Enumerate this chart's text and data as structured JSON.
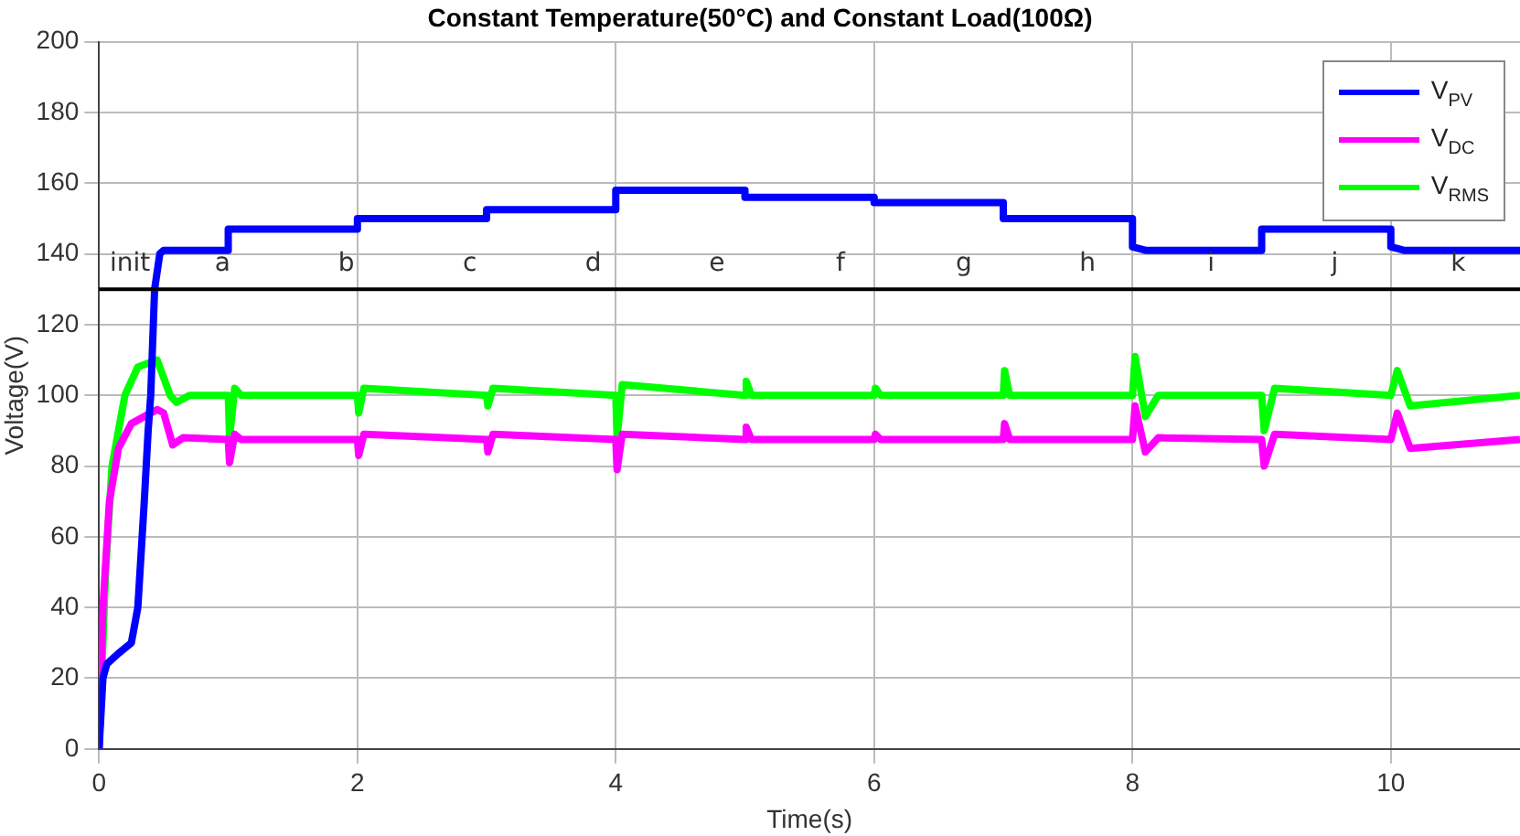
{
  "chart_data": {
    "type": "line",
    "title": "Constant Temperature(50°C) and Constant Load(100Ω)",
    "xlabel": "Time(s)",
    "ylabel": "Voltage(V)",
    "xlim": [
      0,
      11
    ],
    "xticks": [
      0,
      2,
      4,
      6,
      8,
      10
    ],
    "ylim": [
      0,
      200
    ],
    "yticks": [
      0,
      20,
      40,
      60,
      80,
      100,
      120,
      140,
      160,
      180,
      200
    ],
    "grid": true,
    "legend": "top right",
    "marker": "none",
    "line_style": "solid",
    "series": [
      {
        "name": "V$_{PV}$",
        "color": "#0000ff",
        "x": [
          0,
          0.03,
          0.06,
          0.15,
          0.25,
          0.3,
          0.35,
          0.38,
          0.4,
          0.43,
          0.47,
          0.5,
          0.55,
          1,
          1,
          2,
          2,
          3,
          3,
          4,
          4,
          5,
          5,
          6,
          6,
          7,
          7,
          8,
          8,
          8.1,
          9,
          9,
          10,
          10,
          10.1,
          11
        ],
        "values": [
          0,
          20,
          24,
          27,
          30,
          40,
          70,
          90,
          100,
          130,
          140,
          141,
          141,
          141,
          147,
          147,
          150,
          150,
          152.5,
          152.5,
          158,
          158,
          156,
          156,
          154.5,
          154.5,
          150,
          150,
          142,
          141,
          141,
          147,
          147,
          142,
          141,
          141
        ]
      },
      {
        "name": "V$_{DC}$",
        "color": "#ff00ff",
        "x": [
          0,
          0.03,
          0.08,
          0.15,
          0.25,
          0.4,
          0.45,
          0.5,
          0.57,
          0.65,
          1,
          1.01,
          1.05,
          1.1,
          2,
          2.01,
          2.05,
          3,
          3.01,
          3.05,
          4,
          4.01,
          4.05,
          5,
          5.01,
          5.05,
          6,
          6.01,
          6.05,
          7,
          7.01,
          7.05,
          8,
          8.02,
          8.1,
          8.2,
          9,
          9.02,
          9.1,
          10,
          10.05,
          10.15,
          11
        ],
        "values": [
          0,
          40,
          70,
          85,
          92,
          95,
          96,
          95,
          86,
          88,
          87.5,
          81,
          89,
          87.5,
          87.5,
          83,
          89,
          87.5,
          84,
          89,
          87.5,
          79,
          89,
          87.5,
          91,
          87.5,
          87.5,
          89,
          87.5,
          87.5,
          92,
          87.5,
          87.5,
          97,
          84,
          88,
          87.5,
          80,
          89,
          87.5,
          95,
          85,
          87.5
        ]
      },
      {
        "name": "V$_{RMS}$",
        "color": "#00ff00",
        "x": [
          0,
          0.03,
          0.05,
          0.1,
          0.2,
          0.3,
          0.45,
          0.5,
          0.55,
          0.6,
          0.7,
          1,
          1.01,
          1.05,
          1.1,
          2,
          2.01,
          2.05,
          3,
          3.01,
          3.05,
          4,
          4.01,
          4.05,
          5,
          5.01,
          5.05,
          6,
          6.01,
          6.05,
          7,
          7.01,
          7.05,
          8,
          8.02,
          8.1,
          8.2,
          9,
          9.02,
          9.1,
          10,
          10.05,
          10.15,
          11
        ],
        "values": [
          0,
          30,
          50,
          80,
          100,
          108,
          110,
          105,
          100,
          98,
          100,
          100,
          88,
          102,
          100,
          100,
          95,
          102,
          100,
          97,
          102,
          100,
          88,
          103,
          100,
          104,
          100,
          100,
          102,
          100,
          100,
          107,
          100,
          100,
          111,
          94,
          100,
          100,
          90,
          102,
          100,
          107,
          97,
          100
        ]
      }
    ],
    "ref_lines": [
      {
        "axis": "y",
        "value": 130,
        "color": "#000000",
        "line_style": "solid"
      }
    ],
    "annotations": [
      "init",
      "a",
      "b",
      "c",
      "d",
      "e",
      "f",
      "g",
      "h",
      "i",
      "j",
      "k"
    ]
  }
}
